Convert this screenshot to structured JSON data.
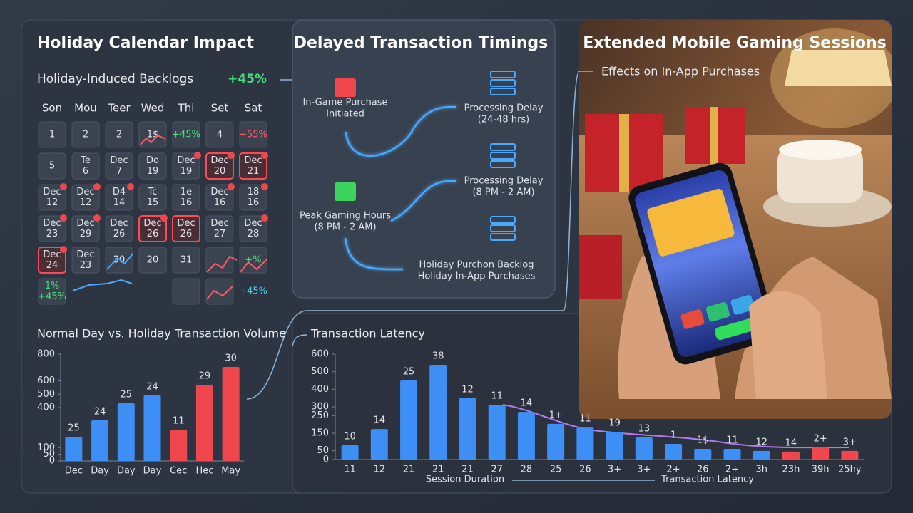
{
  "calendar": {
    "title": "Holiday Calendar Impact",
    "subtitle": "Holiday-Induced Backlogs",
    "badge": "+45%",
    "weekdays": [
      "Son",
      "Mou",
      "Teer",
      "Wed",
      "Thi",
      "Set",
      "Sat"
    ],
    "cells": [
      [
        [
          "1"
        ],
        [
          "2"
        ],
        [
          "2"
        ],
        [
          "1$"
        ],
        [
          "+45%"
        ],
        [
          "4"
        ],
        [
          "+55%"
        ]
      ],
      [
        [
          "5"
        ],
        [
          "Te",
          "6"
        ],
        [
          "Dec",
          "7"
        ],
        [
          "Do",
          "19"
        ],
        [
          "Dec",
          "19"
        ],
        [
          "Dec",
          "20"
        ],
        [
          "Dec",
          "21"
        ]
      ],
      [
        [
          "Dec",
          "12"
        ],
        [
          "Dec",
          "12"
        ],
        [
          "D4",
          "14"
        ],
        [
          "Tc",
          "15"
        ],
        [
          "1e",
          "16"
        ],
        [
          "Dec",
          "16"
        ],
        [
          "18",
          "16"
        ]
      ],
      [
        [
          "Dec",
          "23"
        ],
        [
          "Dec",
          "29"
        ],
        [
          "Dec",
          "26"
        ],
        [
          "Dec",
          "26"
        ],
        [
          "Dec",
          "26"
        ],
        [
          "Dec",
          "27"
        ],
        [
          "Dec",
          "28"
        ]
      ],
      [
        [
          "Dec",
          "24"
        ],
        [
          "Dec",
          "23"
        ],
        [
          "30"
        ],
        [
          "20"
        ],
        [
          "31"
        ],
        null,
        [
          "+%"
        ]
      ],
      [
        [
          "1%",
          "+45%"
        ],
        null,
        null,
        null,
        null,
        null,
        [
          "+45%"
        ]
      ]
    ]
  },
  "flow": {
    "title": "Delayed Transaction Timings",
    "nodes": [
      {
        "label": [
          "In-Game Purchase",
          "Initiated"
        ]
      },
      {
        "label": [
          "Processing Delay",
          "(24-48 hrs)"
        ]
      },
      {
        "label": [
          "Processing Delay",
          "(8 PM - 2 AM)"
        ]
      },
      {
        "label": [
          "Peak Gaming Hours",
          "(8 PM - 2 AM)"
        ]
      },
      {
        "label": [
          "Holiday Purchon Backlog",
          "Holiday In-App Purchases"
        ]
      }
    ]
  },
  "photo": {
    "title": "Extended Mobile Gaming Sessions",
    "subtitle": "Effects on In-App Purchases"
  },
  "chart_data": [
    {
      "type": "bar",
      "title": "Normal Day vs. Holiday Transaction Volume",
      "categories": [
        "Dec",
        "Day",
        "Day",
        "Day",
        "Cec",
        "Hec",
        "May"
      ],
      "values": [
        181,
        304,
        432,
        491,
        235,
        571,
        704
      ],
      "annotations": [
        "25",
        "24",
        "25",
        "24",
        "11",
        "29",
        "30"
      ],
      "colors": [
        "#3d8ef5",
        "#3d8ef5",
        "#3d8ef5",
        "#3d8ef5",
        "#f0474f",
        "#f0474f",
        "#f0474f"
      ],
      "ylim": [
        0,
        800
      ],
      "yticks": [
        0,
        50,
        100,
        400,
        500,
        600,
        800
      ]
    },
    {
      "type": "bar",
      "title": "Transaction Latency",
      "categories": [
        "11",
        "12",
        "21",
        "21",
        "21",
        "27",
        "28",
        "25",
        "26",
        "3+",
        "3+",
        "2+",
        "26",
        "2+",
        "3h",
        "23h",
        "39h",
        "25hy"
      ],
      "values": [
        81,
        174,
        450,
        539,
        349,
        312,
        271,
        203,
        182,
        158,
        126,
        89,
        61,
        61,
        49,
        45,
        69,
        49
      ],
      "annotations": [
        "10",
        "14",
        "25",
        "38",
        "12",
        "11",
        "14",
        "1+",
        "11",
        "19",
        "13",
        "1",
        "1$",
        "11",
        "12",
        "14",
        "2+",
        "3+"
      ],
      "colors": [
        "#3d8ef5",
        "#3d8ef5",
        "#3d8ef5",
        "#3d8ef5",
        "#3d8ef5",
        "#3d8ef5",
        "#3d8ef5",
        "#3d8ef5",
        "#3d8ef5",
        "#3d8ef5",
        "#3d8ef5",
        "#3d8ef5",
        "#3d8ef5",
        "#3d8ef5",
        "#3d8ef5",
        "#f0474f",
        "#f0474f",
        "#f0474f"
      ],
      "ylim": [
        0,
        600
      ],
      "yticks": [
        0,
        50,
        150,
        250,
        300,
        400,
        500,
        600
      ],
      "xlabel": "Session Duration",
      "xlabel_to": "Transaction Latency"
    }
  ]
}
